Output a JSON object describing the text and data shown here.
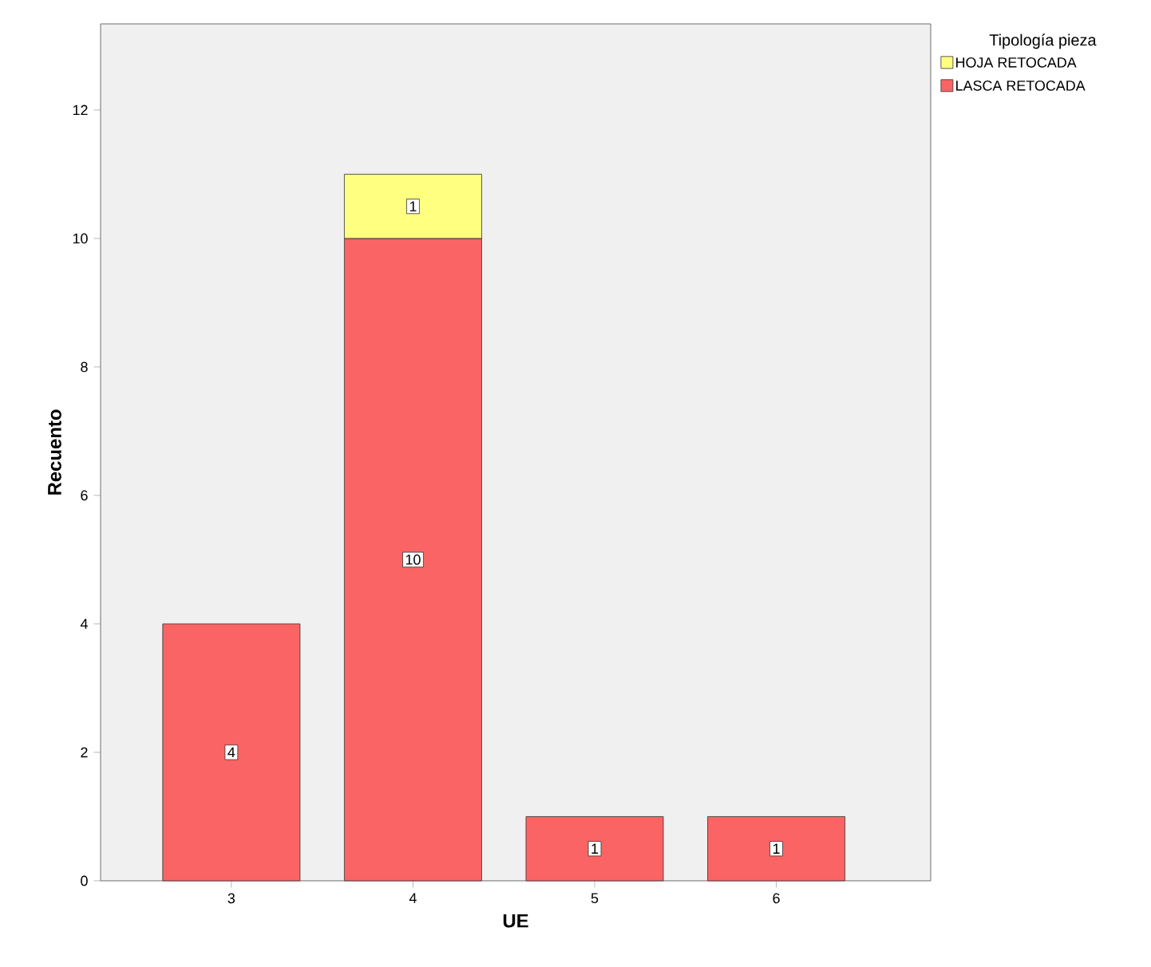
{
  "chart_data": {
    "type": "bar",
    "stacked": true,
    "xlabel": "UE",
    "ylabel": "Recuento",
    "legend_title": "Tipología pieza",
    "categories": [
      "3",
      "4",
      "5",
      "6"
    ],
    "series": [
      {
        "name": "LASCA RETOCADA",
        "color": "#fa6464",
        "values": [
          4,
          10,
          1,
          1
        ]
      },
      {
        "name": "HOJA RETOCADA",
        "color": "#ffff80",
        "values": [
          null,
          1,
          null,
          null
        ]
      }
    ],
    "ylim": [
      0,
      13.34
    ],
    "yticks": [
      0,
      2,
      4,
      6,
      8,
      10,
      12
    ],
    "legend": "top right",
    "data_labels": true,
    "grid": false
  }
}
